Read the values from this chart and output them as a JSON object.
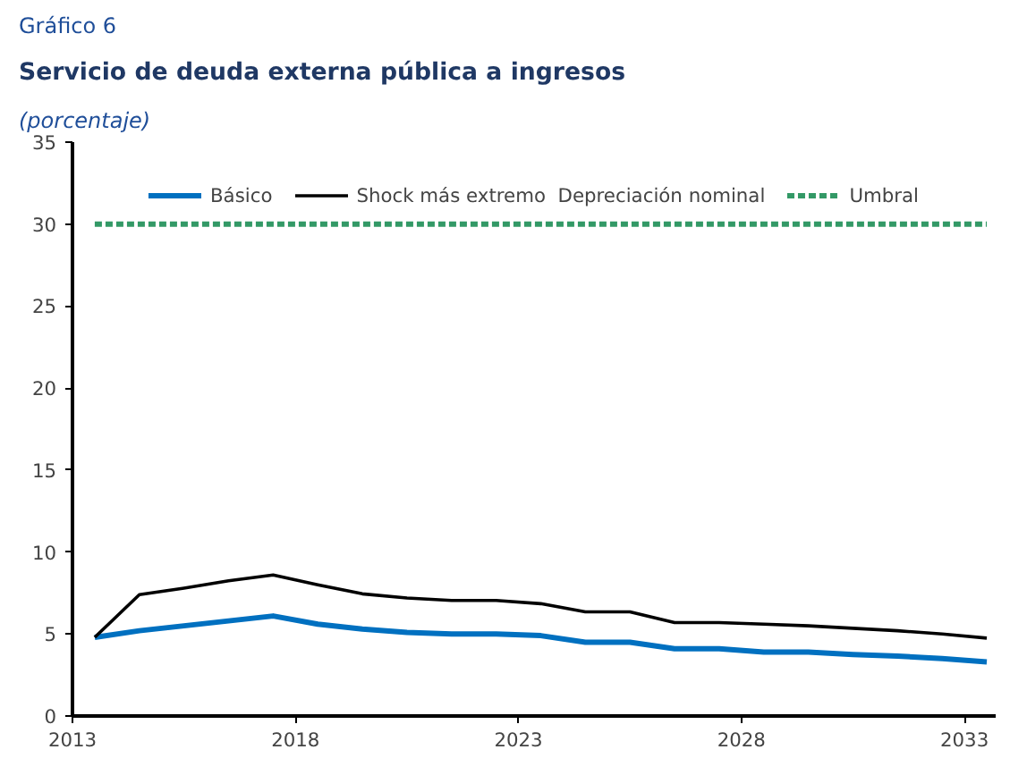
{
  "chart_data": {
    "type": "line",
    "title": "Servicio de deuda externa pública a ingresos",
    "subtitle": "(porcentaje)",
    "annotations": [
      "Gráfico 6"
    ],
    "x": [
      2013.5,
      2014.5,
      2015.5,
      2016.5,
      2017.5,
      2018.5,
      2019.5,
      2020.5,
      2021.5,
      2022.5,
      2023.5,
      2024.5,
      2025.5,
      2026.5,
      2027.5,
      2028.5,
      2029.5,
      2030.5,
      2031.5,
      2032.5,
      2033.5
    ],
    "series": [
      {
        "name": "Básico",
        "color": "#0070c0",
        "line_style": "solid",
        "values": [
          4.8,
          5.2,
          5.5,
          5.8,
          6.1,
          5.6,
          5.3,
          5.1,
          5.0,
          5.0,
          4.9,
          4.5,
          4.5,
          4.1,
          4.1,
          3.9,
          3.9,
          3.75,
          3.65,
          3.5,
          3.3
        ]
      },
      {
        "name": "Shock más extremo  Depreciación nominal",
        "color": "#000000",
        "line_style": "solid",
        "values": [
          4.8,
          7.4,
          7.8,
          8.25,
          8.6,
          8.0,
          7.45,
          7.2,
          7.05,
          7.05,
          6.85,
          6.35,
          6.35,
          5.7,
          5.7,
          5.6,
          5.5,
          5.35,
          5.2,
          5.0,
          4.75
        ]
      },
      {
        "name": "Umbral",
        "color": "#339966",
        "line_style": "dashed",
        "values": [
          30,
          30,
          30,
          30,
          30,
          30,
          30,
          30,
          30,
          30,
          30,
          30,
          30,
          30,
          30,
          30,
          30,
          30,
          30,
          30,
          30
        ]
      }
    ],
    "xlim": [
      2013,
      2033.7
    ],
    "xticks": [
      2013,
      2018,
      2023,
      2028,
      2033
    ],
    "ylim": [
      0,
      35
    ],
    "yticks": [
      0,
      5,
      10,
      15,
      20,
      25,
      30,
      35
    ],
    "grid": false,
    "legend": "top",
    "marker": "none"
  }
}
